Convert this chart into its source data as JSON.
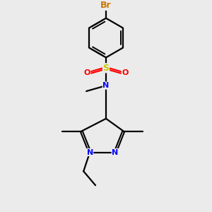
{
  "background_color": "#ebebeb",
  "bond_color": "#000000",
  "atom_colors": {
    "N": "#0000ff",
    "O": "#ff0000",
    "S": "#cccc00",
    "Br": "#cc7700",
    "C": "#000000"
  },
  "figsize": [
    3.0,
    3.0
  ],
  "dpi": 100
}
